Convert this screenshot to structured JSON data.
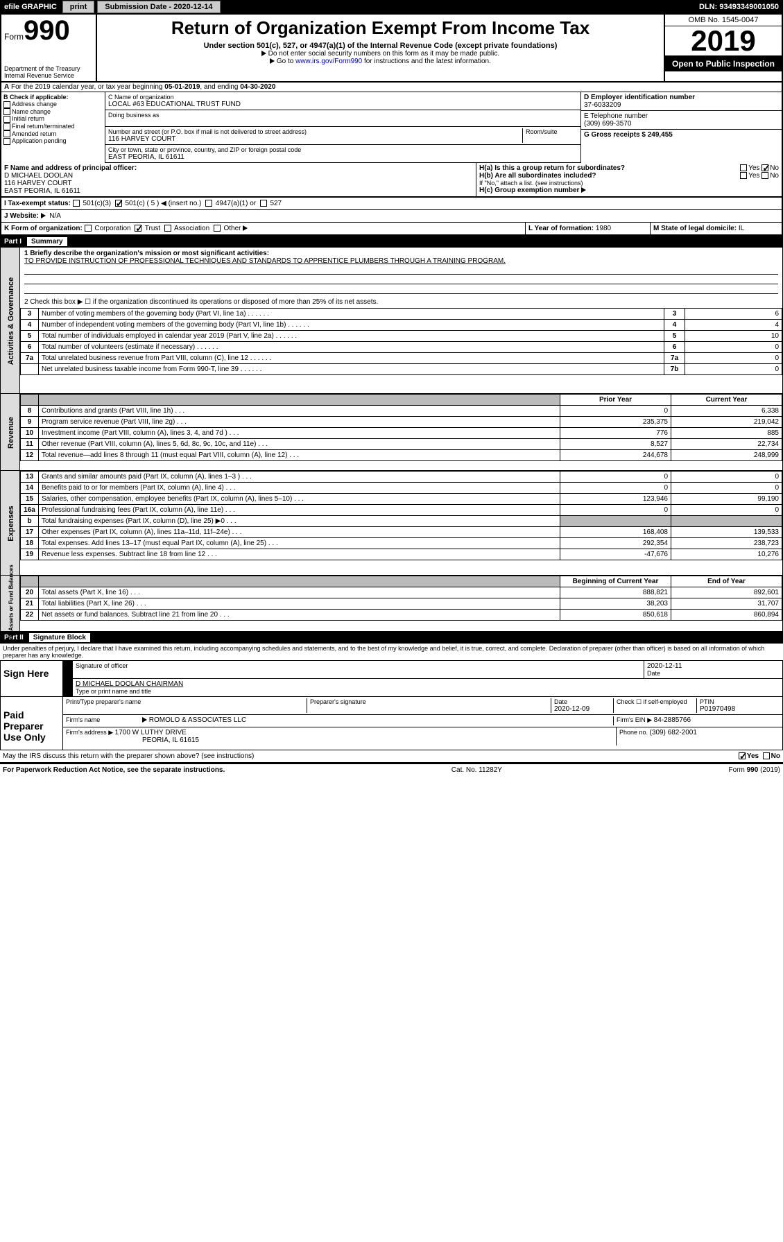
{
  "topbar": {
    "efile_label": "efile GRAPHIC",
    "print_btn": "print",
    "submission_label": "Submission Date - 2020-12-14",
    "dln_label": "DLN: 93493349001050"
  },
  "header": {
    "form_word": "Form",
    "form_num": "990",
    "dept": "Department of the Treasury",
    "irs": "Internal Revenue Service",
    "title": "Return of Organization Exempt From Income Tax",
    "subtitle": "Under section 501(c), 527, or 4947(a)(1) of the Internal Revenue Code (except private foundations)",
    "note1": "Do not enter social security numbers on this form as it may be made public.",
    "note2_a": "Go to ",
    "note2_link": "www.irs.gov/Form990",
    "note2_b": " for instructions and the latest information.",
    "omb": "OMB No. 1545-0047",
    "year": "2019",
    "open": "Open to Public Inspection"
  },
  "line_a": {
    "text_a": "For the 2019 calendar year, or tax year beginning ",
    "begin": "05-01-2019",
    "text_b": ", and ending ",
    "end": "04-30-2020"
  },
  "sec_b": {
    "label": "B Check if applicable:",
    "addr_change": "Address change",
    "name_change": "Name change",
    "initial": "Initial return",
    "final": "Final return/terminated",
    "amended": "Amended return",
    "app_pending": "Application pending"
  },
  "sec_c": {
    "c_label": "C Name of organization",
    "org_name": "LOCAL #63 EDUCATIONAL TRUST FUND",
    "dba_label": "Doing business as",
    "addr_label": "Number and street (or P.O. box if mail is not delivered to street address)",
    "room_label": "Room/suite",
    "addr": "116 HARVEY COURT",
    "city_label": "City or town, state or province, country, and ZIP or foreign postal code",
    "city": "EAST PEORIA, IL  61611",
    "f_label": "F Name and address of principal officer:",
    "officer_name": "D MICHAEL DOOLAN",
    "officer_addr1": "116 HARVEY COURT",
    "officer_addr2": "EAST PEORIA, IL  61611"
  },
  "sec_d": {
    "d_label": "D Employer identification number",
    "ein": "37-6033209",
    "e_label": "E Telephone number",
    "phone": "(309) 699-3570",
    "g_label": "G Gross receipts $ ",
    "g_val": "249,455"
  },
  "sec_h": {
    "ha_label": "H(a)  Is this a group return for subordinates?",
    "hb_label": "H(b)  Are all subordinates included?",
    "hb_note": "If \"No,\" attach a list. (see instructions)",
    "hc_label": "H(c)  Group exemption number",
    "yes": "Yes",
    "no": "No"
  },
  "row_i": {
    "label": "I   Tax-exempt status:",
    "c3": "501(c)(3)",
    "c5": "501(c) ( 5 )",
    "insert": "(insert no.)",
    "a1": "4947(a)(1) or",
    "s527": "527"
  },
  "row_j": {
    "label": "J   Website:",
    "val": "N/A"
  },
  "row_k": {
    "label": "K Form of organization:",
    "corp": "Corporation",
    "trust": "Trust",
    "assoc": "Association",
    "other": "Other",
    "l_label": "L Year of formation: ",
    "l_val": "1980",
    "m_label": "M State of legal domicile: ",
    "m_val": "IL"
  },
  "part1": {
    "num": "Part I",
    "title": "Summary",
    "q1_label": "1  Briefly describe the organization's mission or most significant activities:",
    "q1_text": "TO PROVIDE INSTRUCTION OF PROFESSIONAL TECHNIQUES AND STANDARDS TO APPRENTICE PLUMBERS THROUGH A TRAINING PROGRAM.",
    "q2": "2  Check this box ▶ ☐  if the organization discontinued its operations or disposed of more than 25% of its net assets.",
    "sidetab_ag": "Activities & Governance",
    "sidetab_rev": "Revenue",
    "sidetab_exp": "Expenses",
    "sidetab_na": "Net Assets or Fund Balances",
    "col_prior": "Prior Year",
    "col_curr": "Current Year",
    "col_beg": "Beginning of Current Year",
    "col_end": "End of Year",
    "rows_top": [
      {
        "n": "3",
        "d": "Number of voting members of the governing body (Part VI, line 1a)",
        "box": "3",
        "v": "6"
      },
      {
        "n": "4",
        "d": "Number of independent voting members of the governing body (Part VI, line 1b)",
        "box": "4",
        "v": "4"
      },
      {
        "n": "5",
        "d": "Total number of individuals employed in calendar year 2019 (Part V, line 2a)",
        "box": "5",
        "v": "10"
      },
      {
        "n": "6",
        "d": "Total number of volunteers (estimate if necessary)",
        "box": "6",
        "v": "0"
      },
      {
        "n": "7a",
        "d": "Total unrelated business revenue from Part VIII, column (C), line 12",
        "box": "7a",
        "v": "0"
      },
      {
        "n": "",
        "d": "Net unrelated business taxable income from Form 990-T, line 39",
        "box": "7b",
        "v": "0"
      }
    ],
    "rows_rev": [
      {
        "n": "8",
        "d": "Contributions and grants (Part VIII, line 1h)",
        "p": "0",
        "c": "6,338"
      },
      {
        "n": "9",
        "d": "Program service revenue (Part VIII, line 2g)",
        "p": "235,375",
        "c": "219,042"
      },
      {
        "n": "10",
        "d": "Investment income (Part VIII, column (A), lines 3, 4, and 7d )",
        "p": "776",
        "c": "885"
      },
      {
        "n": "11",
        "d": "Other revenue (Part VIII, column (A), lines 5, 6d, 8c, 9c, 10c, and 11e)",
        "p": "8,527",
        "c": "22,734"
      },
      {
        "n": "12",
        "d": "Total revenue—add lines 8 through 11 (must equal Part VIII, column (A), line 12)",
        "p": "244,678",
        "c": "248,999"
      }
    ],
    "rows_exp": [
      {
        "n": "13",
        "d": "Grants and similar amounts paid (Part IX, column (A), lines 1–3 )",
        "p": "0",
        "c": "0"
      },
      {
        "n": "14",
        "d": "Benefits paid to or for members (Part IX, column (A), line 4)",
        "p": "0",
        "c": "0"
      },
      {
        "n": "15",
        "d": "Salaries, other compensation, employee benefits (Part IX, column (A), lines 5–10)",
        "p": "123,946",
        "c": "99,190"
      },
      {
        "n": "16a",
        "d": "Professional fundraising fees (Part IX, column (A), line 11e)",
        "p": "0",
        "c": "0"
      },
      {
        "n": "b",
        "d": "Total fundraising expenses (Part IX, column (D), line 25) ▶0",
        "p": "",
        "c": "",
        "shade": true
      },
      {
        "n": "17",
        "d": "Other expenses (Part IX, column (A), lines 11a–11d, 11f–24e)",
        "p": "168,408",
        "c": "139,533"
      },
      {
        "n": "18",
        "d": "Total expenses. Add lines 13–17 (must equal Part IX, column (A), line 25)",
        "p": "292,354",
        "c": "238,723"
      },
      {
        "n": "19",
        "d": "Revenue less expenses. Subtract line 18 from line 12",
        "p": "-47,676",
        "c": "10,276"
      }
    ],
    "rows_na": [
      {
        "n": "20",
        "d": "Total assets (Part X, line 16)",
        "p": "888,821",
        "c": "892,601"
      },
      {
        "n": "21",
        "d": "Total liabilities (Part X, line 26)",
        "p": "38,203",
        "c": "31,707"
      },
      {
        "n": "22",
        "d": "Net assets or fund balances. Subtract line 21 from line 20",
        "p": "850,618",
        "c": "860,894"
      }
    ]
  },
  "part2": {
    "num": "Part II",
    "title": "Signature Block",
    "perjury": "Under penalties of perjury, I declare that I have examined this return, including accompanying schedules and statements, and to the best of my knowledge and belief, it is true, correct, and complete. Declaration of preparer (other than officer) is based on all information of which preparer has any knowledge.",
    "sign_here": "Sign Here",
    "sig_officer": "Signature of officer",
    "sig_date": "2020-12-11",
    "date_lbl": "Date",
    "officer_line": "D MICHAEL DOOLAN  CHAIRMAN",
    "type_name": "Type or print name and title",
    "paid_prep": "Paid Preparer Use Only",
    "prep_name_lbl": "Print/Type preparer's name",
    "prep_sig_lbl": "Preparer's signature",
    "prep_date": "2020-12-09",
    "check_self": "Check ☐ if self-employed",
    "ptin_lbl": "PTIN",
    "ptin": "P01970498",
    "firm_name_lbl": "Firm's name",
    "firm_name": "ROMOLO & ASSOCIATES LLC",
    "firm_ein_lbl": "Firm's EIN ▶ ",
    "firm_ein": "84-2885766",
    "firm_addr_lbl": "Firm's address ▶ ",
    "firm_addr1": "1700 W LUTHY DRIVE",
    "firm_addr2": "PEORIA, IL  61615",
    "phone_lbl": "Phone no. ",
    "firm_phone": "(309) 682-2001",
    "discuss": "May the IRS discuss this return with the preparer shown above? (see instructions)"
  },
  "footer": {
    "pra": "For Paperwork Reduction Act Notice, see the separate instructions.",
    "cat": "Cat. No. 11282Y",
    "form": "Form 990 (2019)"
  }
}
